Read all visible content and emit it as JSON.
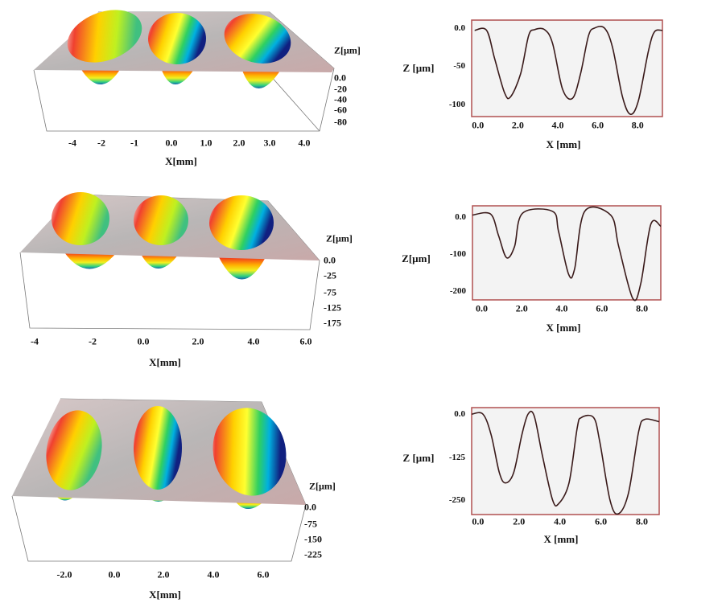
{
  "colors": {
    "profile_line": "#3a1a1a",
    "frame": "#b05050",
    "plot_bg": "#f3f3f3",
    "surface": "#b8b4b4"
  },
  "surfaces": [
    {
      "name": "surface-3d-1",
      "xlabel": "X[mm]",
      "zlabel": "Z[µm]",
      "xticks": [
        "-4",
        "-2",
        "-1",
        "0.0",
        "1.0",
        "2.0",
        "3.0",
        "4.0"
      ],
      "zticks": [
        "0.0",
        "-20",
        "-40",
        "-60",
        "-80"
      ]
    },
    {
      "name": "surface-3d-2",
      "xlabel": "X[mm]",
      "zlabel": "Z[µm]",
      "xticks": [
        "-4",
        "-2",
        "0.0",
        "2.0",
        "4.0",
        "6.0"
      ],
      "zticks": [
        "0.0",
        "-25",
        "-75",
        "-125",
        "-175"
      ]
    },
    {
      "name": "surface-3d-3",
      "xlabel": "X[mm]",
      "zlabel": "Z[µm]",
      "xticks": [
        "-2.0",
        "0.0",
        "2.0",
        "4.0",
        "6.0"
      ],
      "zticks": [
        "0.0",
        "-75",
        "-150",
        "-225"
      ]
    }
  ],
  "chart_data": [
    {
      "type": "line",
      "title": "",
      "xlabel": "X [mm]",
      "ylabel": "Z [µm]",
      "xlim": [
        -0.15,
        9.4
      ],
      "ylim": [
        -116,
        10.5
      ],
      "xticks": [
        "0.0",
        "2.0",
        "4.0",
        "6.0",
        "8.0"
      ],
      "yticks": [
        "0.0",
        "-50",
        "-100"
      ],
      "x": [
        0,
        0.6,
        1.0,
        1.5,
        1.8,
        2.3,
        2.7,
        3.0,
        3.5,
        3.9,
        4.4,
        4.9,
        5.3,
        5.7,
        6.0,
        6.5,
        6.9,
        7.4,
        7.8,
        8.2,
        8.7,
        9.0,
        9.4
      ],
      "y": [
        -3,
        -3,
        -40,
        -85,
        -90,
        -60,
        -10,
        -2,
        -2,
        -20,
        -80,
        -92,
        -60,
        -10,
        0,
        0,
        -25,
        -90,
        -113,
        -95,
        -30,
        -5,
        -3
      ]
    },
    {
      "type": "line",
      "title": "",
      "xlabel": "X [mm]",
      "ylabel": "Z[µm]",
      "xlim": [
        -0.3,
        9.1
      ],
      "ylim": [
        -224,
        30
      ],
      "xticks": [
        "0.0",
        "2.0",
        "4.0",
        "6.0",
        "8.0"
      ],
      "yticks": [
        "0.0",
        "-100",
        "-200"
      ],
      "x": [
        -0.3,
        0.6,
        1.0,
        1.4,
        1.8,
        2.2,
        3.7,
        4.0,
        4.5,
        4.8,
        5.3,
        6.6,
        7.0,
        7.7,
        8.1,
        8.6,
        9.1
      ],
      "y": [
        5,
        8,
        -50,
        -110,
        -80,
        10,
        15,
        -40,
        -155,
        -140,
        15,
        5,
        -80,
        -220,
        -180,
        -20,
        -25
      ]
    },
    {
      "type": "line",
      "title": "",
      "xlabel": "X [mm]",
      "ylabel": "Z [µm]",
      "xlim": [
        -0.15,
        9.0
      ],
      "ylim": [
        -292,
        19
      ],
      "xticks": [
        "0.0",
        "2.0",
        "4.0",
        "6.0",
        "8.0"
      ],
      "yticks": [
        "0.0",
        "-125",
        "-250"
      ],
      "x": [
        -0.15,
        0.4,
        0.8,
        1.2,
        1.5,
        1.9,
        2.3,
        2.6,
        2.9,
        3.3,
        3.8,
        4.1,
        4.6,
        5.0,
        5.2,
        5.8,
        6.1,
        6.6,
        7.0,
        7.5,
        8.0,
        8.3,
        9.0
      ],
      "y": [
        0,
        0,
        -60,
        -170,
        -200,
        -170,
        -60,
        0,
        -5,
        -120,
        -250,
        -260,
        -200,
        -40,
        -10,
        -10,
        -80,
        -250,
        -290,
        -230,
        -50,
        -15,
        -22
      ]
    }
  ]
}
